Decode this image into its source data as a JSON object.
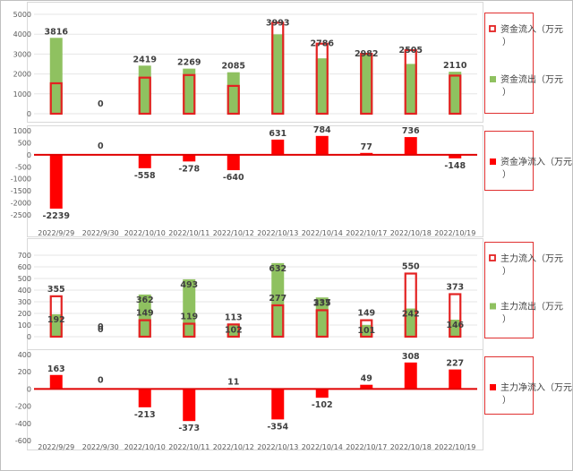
{
  "chart_data": [
    {
      "type": "bar",
      "categories": [
        "2022/9/29",
        "2022/9/30",
        "2022/10/10",
        "2022/10/11",
        "2022/10/12",
        "2022/10/13",
        "2022/10/14",
        "2022/10/17",
        "2022/10/18",
        "2022/10/19"
      ],
      "ylim": [
        0,
        5000
      ],
      "yticks": [
        0,
        1000,
        2000,
        3000,
        4000,
        5000
      ],
      "grid": true,
      "legend_placement": "right",
      "series": [
        {
          "name": "资金流入（万元）",
          "style": "outline",
          "color": "#e32222",
          "values": [
            1577,
            0,
            1861,
            1991,
            1445,
            4624,
            3570,
            3059,
            3241,
            1962
          ]
        },
        {
          "name": "资金流出（万元）",
          "style": "fill",
          "color": "#8fc160",
          "values": [
            3816,
            0,
            2419,
            2269,
            2085,
            3993,
            2786,
            2982,
            2505,
            2110
          ]
        }
      ],
      "data_labels": [
        "3816",
        "0",
        "2419",
        "2269",
        "2085",
        "3993",
        "2786",
        "2982",
        "2505",
        "2110"
      ]
    },
    {
      "type": "bar",
      "categories": [
        "2022/9/29",
        "2022/9/30",
        "2022/10/10",
        "2022/10/11",
        "2022/10/12",
        "2022/10/13",
        "2022/10/14",
        "2022/10/17",
        "2022/10/18",
        "2022/10/19"
      ],
      "ylim": [
        -2500,
        1000
      ],
      "yticks": [
        -2500,
        -2000,
        -1500,
        -1000,
        -500,
        0,
        500,
        1000
      ],
      "grid": false,
      "legend_placement": "right",
      "series": [
        {
          "name": "资金净流入（万元）",
          "style": "fill",
          "color": "#ff0000",
          "values": [
            -2239,
            0,
            -558,
            -278,
            -640,
            631,
            784,
            77,
            736,
            -148
          ]
        }
      ],
      "data_labels": [
        "-2239",
        "0",
        "-558",
        "-278",
        "-640",
        "631",
        "784",
        "77",
        "736",
        "-148"
      ]
    },
    {
      "type": "bar",
      "categories": [
        "2022/9/29",
        "2022/9/30",
        "2022/10/10",
        "2022/10/11",
        "2022/10/12",
        "2022/10/13",
        "2022/10/14",
        "2022/10/17",
        "2022/10/18",
        "2022/10/19"
      ],
      "ylim": [
        0,
        700
      ],
      "yticks": [
        0,
        100,
        200,
        300,
        400,
        500,
        600,
        700
      ],
      "grid": true,
      "legend_placement": "right",
      "series": [
        {
          "name": "主力流入（万元）",
          "style": "outline",
          "color": "#e32222",
          "values": [
            355,
            0,
            149,
            119,
            113,
            277,
            235,
            149,
            550,
            373
          ]
        },
        {
          "name": "主力流出（万元）",
          "style": "fill",
          "color": "#8fc160",
          "values": [
            192,
            0,
            362,
            493,
            102,
            632,
            337,
            101,
            242,
            146
          ]
        }
      ],
      "data_labels_inflow": [
        "355",
        "0",
        "149",
        "119",
        "113",
        "277",
        "235",
        "149",
        "550",
        "373"
      ],
      "data_labels_outflow": [
        "192",
        "0",
        "362",
        "493",
        "102",
        "632",
        "337",
        "101",
        "242",
        "146"
      ]
    },
    {
      "type": "bar",
      "categories": [
        "2022/9/29",
        "2022/9/30",
        "2022/10/10",
        "2022/10/11",
        "2022/10/12",
        "2022/10/13",
        "2022/10/14",
        "2022/10/17",
        "2022/10/18",
        "2022/10/19"
      ],
      "ylim": [
        -600,
        400
      ],
      "yticks": [
        -600,
        -400,
        -200,
        0,
        200,
        400
      ],
      "grid": false,
      "legend_placement": "right",
      "series": [
        {
          "name": "主力净流入（万元）",
          "style": "fill",
          "color": "#ff0000",
          "values": [
            163,
            0,
            -213,
            -373,
            11,
            -354,
            -102,
            49,
            308,
            227
          ]
        }
      ],
      "data_labels": [
        "163",
        "0",
        "-213",
        "-373",
        "11",
        "-354",
        "-102",
        "49",
        "308",
        "227"
      ]
    }
  ]
}
